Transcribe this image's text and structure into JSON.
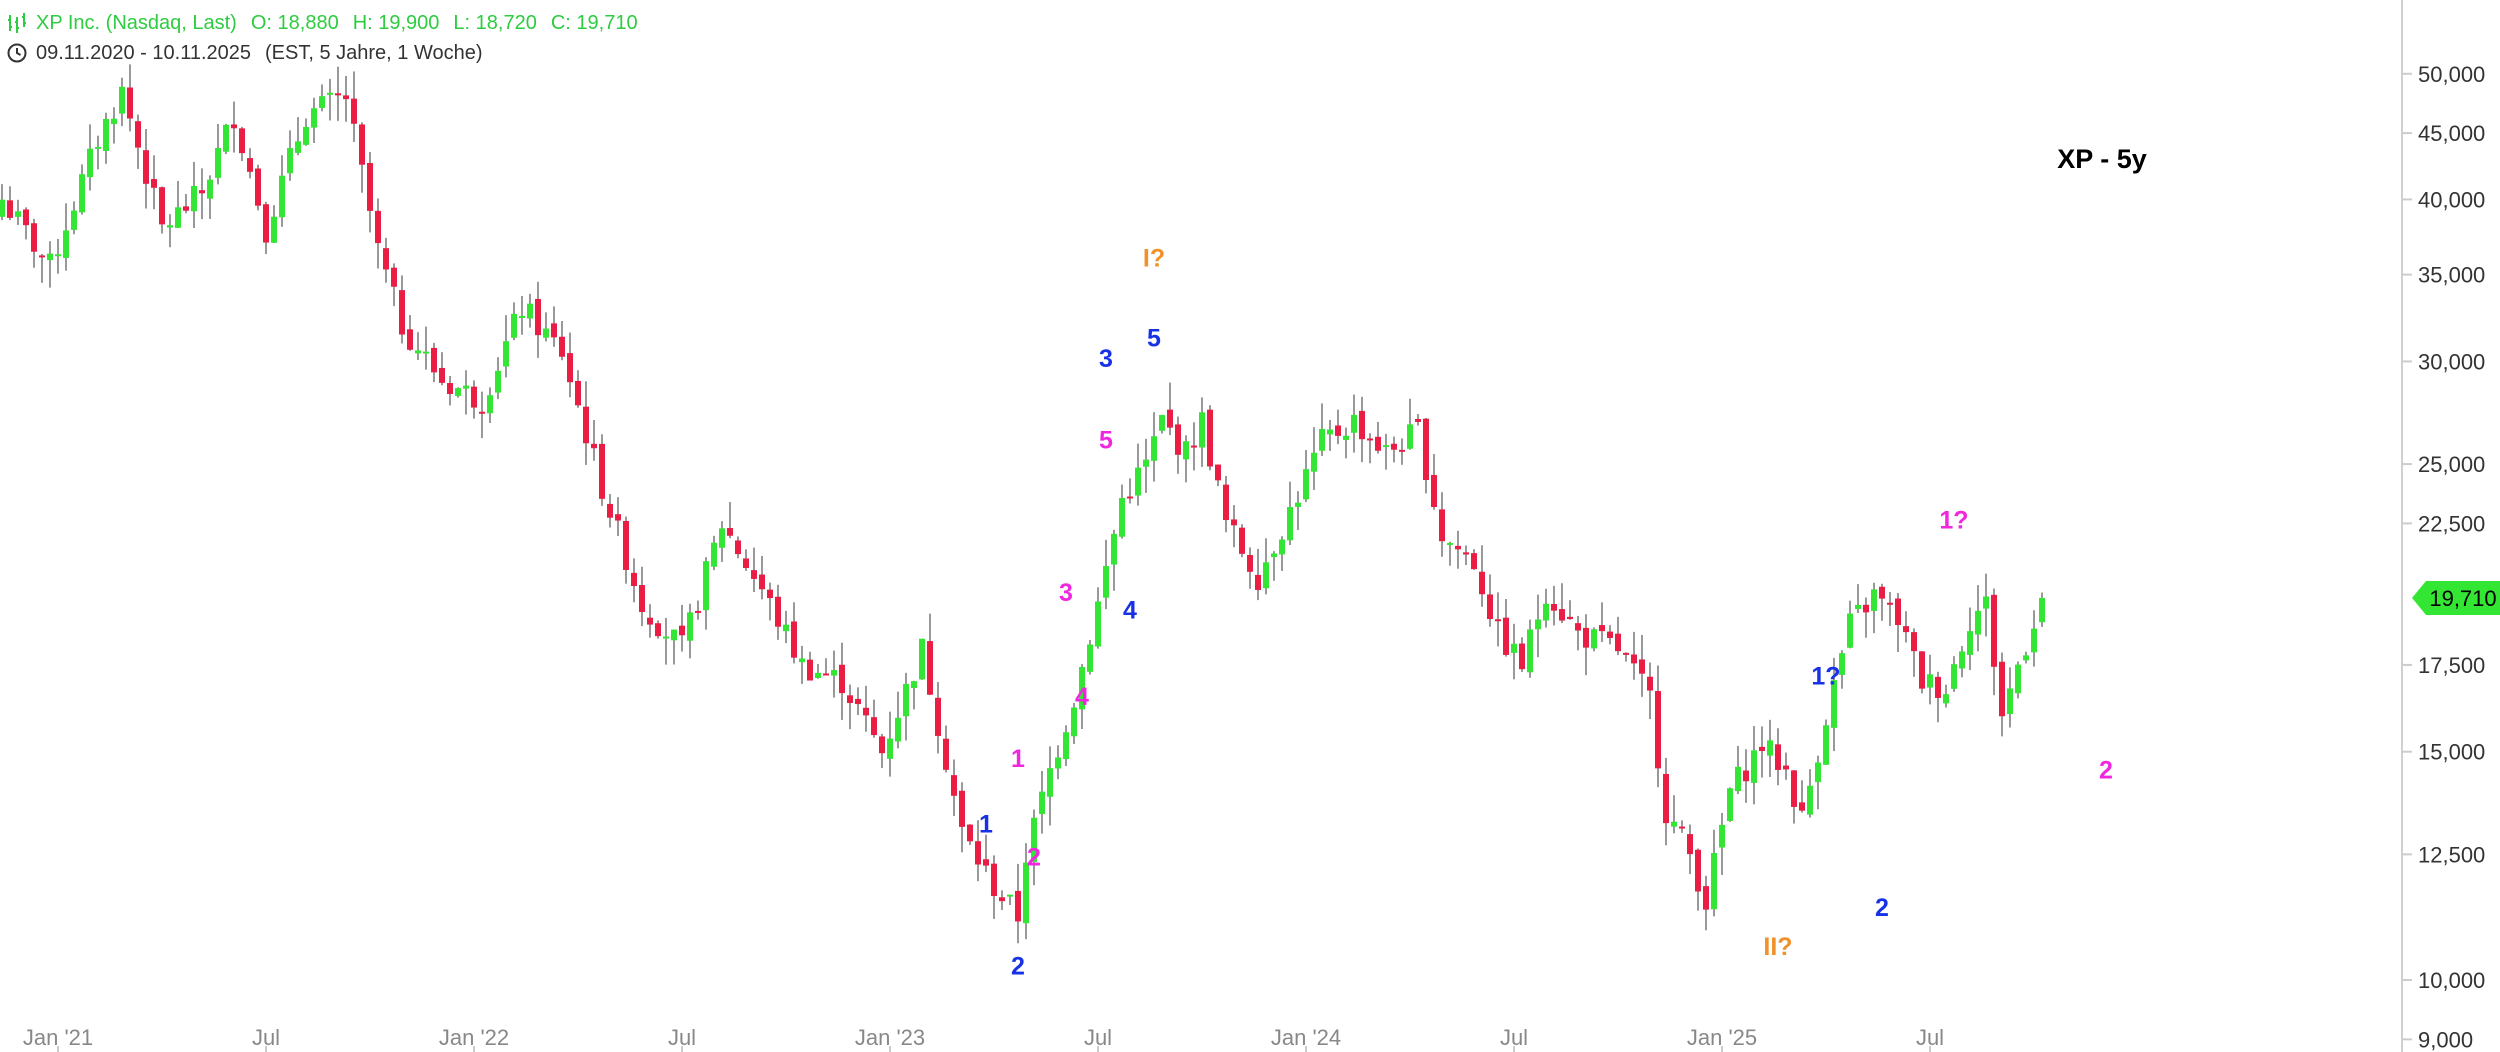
{
  "header": {
    "instrument": "XP Inc. (Nasdaq, Last)",
    "open": "O: 18,880",
    "high": "H: 19,900",
    "low": "L: 18,720",
    "close": "C: 19,710",
    "range": "09.11.2020 - 10.11.2025",
    "settings": "(EST, 5 Jahre, 1 Woche)"
  },
  "colors": {
    "up": "#33e633",
    "down": "#ea1d44",
    "wick": "#555555",
    "wave_blue": "#1732e6",
    "wave_magenta": "#f126e0",
    "wave_orange": "#f0912a",
    "last_price_bg": "#33e633"
  },
  "icons": {
    "instrument": "chart-bars-icon",
    "time": "clock-icon"
  },
  "chart_data": {
    "type": "candlestick",
    "title": "XP - 5y",
    "period": "1 Woche",
    "y_scale": "log",
    "ylim": [
      8800,
      57000
    ],
    "y_ticks": [
      "9,000",
      "10,000",
      "12,500",
      "15,000",
      "17,500",
      "22,500",
      "25,000",
      "30,000",
      "35,000",
      "40,000",
      "45,000",
      "50,000"
    ],
    "x_ticks": [
      "Jan '21",
      "Jul",
      "Jan '22",
      "Jul",
      "Jan '23",
      "Jul",
      "Jan '24",
      "Jul",
      "Jan '25",
      "Jul"
    ],
    "last_price": "19,710",
    "last_ohlc": {
      "open": 18880,
      "high": 19900,
      "low": 18720,
      "close": 19710
    },
    "anchors": [
      [
        0,
        40000
      ],
      [
        6,
        35500
      ],
      [
        12,
        44500
      ],
      [
        15,
        48500
      ],
      [
        20,
        38000
      ],
      [
        25,
        40500
      ],
      [
        29,
        46500
      ],
      [
        33,
        38000
      ],
      [
        38,
        46500
      ],
      [
        43,
        48000
      ],
      [
        47,
        36500
      ],
      [
        50,
        32000
      ],
      [
        55,
        29000
      ],
      [
        60,
        28000
      ],
      [
        65,
        33000
      ],
      [
        70,
        30500
      ],
      [
        75,
        24000
      ],
      [
        80,
        19500
      ],
      [
        85,
        18000
      ],
      [
        90,
        22500
      ],
      [
        95,
        20000
      ],
      [
        100,
        17500
      ],
      [
        105,
        17000
      ],
      [
        110,
        15000
      ],
      [
        115,
        18000
      ],
      [
        120,
        13000
      ],
      [
        124,
        11800
      ],
      [
        127,
        11200
      ],
      [
        128,
        12500
      ],
      [
        131,
        14500
      ],
      [
        134,
        16500
      ],
      [
        137,
        19500
      ],
      [
        140,
        23500
      ],
      [
        143,
        25000
      ],
      [
        145,
        27000
      ],
      [
        148,
        25500
      ],
      [
        150,
        27000
      ],
      [
        153,
        22500
      ],
      [
        157,
        20500
      ],
      [
        161,
        23000
      ],
      [
        165,
        26000
      ],
      [
        169,
        27000
      ],
      [
        173,
        25500
      ],
      [
        177,
        26500
      ],
      [
        180,
        22000
      ],
      [
        184,
        21000
      ],
      [
        187,
        18500
      ],
      [
        190,
        17500
      ],
      [
        193,
        20000
      ],
      [
        197,
        18500
      ],
      [
        202,
        18000
      ],
      [
        206,
        16500
      ],
      [
        208,
        13500
      ],
      [
        211,
        12500
      ],
      [
        213,
        11500
      ],
      [
        216,
        14000
      ],
      [
        220,
        15200
      ],
      [
        223,
        14500
      ],
      [
        225,
        13300
      ],
      [
        228,
        16000
      ],
      [
        231,
        18800
      ],
      [
        234,
        19800
      ],
      [
        237,
        19000
      ],
      [
        240,
        17000
      ],
      [
        243,
        16800
      ],
      [
        246,
        19000
      ],
      [
        248,
        19500
      ],
      [
        250,
        16000
      ],
      [
        252,
        17500
      ],
      [
        255,
        19710
      ]
    ],
    "annotations": [
      {
        "text": "1",
        "color": "blue",
        "x": 123,
        "y": 13000
      },
      {
        "text": "2",
        "color": "blue",
        "x": 127,
        "y": 10100
      },
      {
        "text": "1",
        "color": "magenta",
        "x": 127,
        "y": 14600
      },
      {
        "text": "2",
        "color": "magenta",
        "x": 129,
        "y": 12250
      },
      {
        "text": "3",
        "color": "magenta",
        "x": 133,
        "y": 19600
      },
      {
        "text": "4",
        "color": "magenta",
        "x": 135,
        "y": 16300
      },
      {
        "text": "5",
        "color": "magenta",
        "x": 138,
        "y": 25700
      },
      {
        "text": "3",
        "color": "blue",
        "x": 138,
        "y": 29700
      },
      {
        "text": "4",
        "color": "blue",
        "x": 141,
        "y": 19000
      },
      {
        "text": "5",
        "color": "blue",
        "x": 144,
        "y": 30800
      },
      {
        "text": "I?",
        "color": "orange",
        "x": 144,
        "y": 35500
      },
      {
        "text": "II?",
        "color": "orange",
        "x": 222,
        "y": 10450
      },
      {
        "text": "1?",
        "color": "blue",
        "x": 228,
        "y": 16900
      },
      {
        "text": "2",
        "color": "blue",
        "x": 235,
        "y": 11200
      },
      {
        "text": "1?",
        "color": "magenta",
        "x": 244,
        "y": 22300
      },
      {
        "text": "2",
        "color": "magenta",
        "x": 263,
        "y": 14300
      }
    ]
  }
}
